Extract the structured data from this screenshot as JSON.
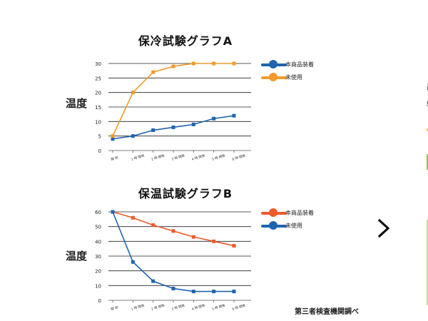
{
  "charts": [
    {
      "id": "A",
      "type": "line",
      "title": "保冷試験グラフA",
      "ylabel": "温度",
      "ylim": [
        0,
        30
      ],
      "yticks": [
        "0",
        "5",
        "10",
        "15",
        "20",
        "25",
        "30"
      ],
      "categories": [
        "開 始",
        "1 時 間後",
        "2 時 間後",
        "3 時 間後",
        "4 時 間後",
        "5 時 間後",
        "6 時 間後"
      ],
      "series": [
        {
          "name": "本商品装着",
          "color": "#1f64b0",
          "values": [
            4,
            5,
            7,
            8,
            9,
            11,
            12
          ]
        },
        {
          "name": "未使用",
          "color": "#f09a2c",
          "values": [
            5,
            20,
            27,
            29,
            30,
            30,
            30
          ]
        }
      ],
      "grid": true,
      "legend": "right"
    },
    {
      "id": "B",
      "type": "line",
      "title": "保温試験グラフB",
      "ylabel": "温度",
      "ylim": [
        0,
        60
      ],
      "yticks": [
        "0",
        "10",
        "20",
        "30",
        "40",
        "50",
        "60"
      ],
      "categories": [
        "開 始",
        "1 時 間後",
        "2 時 間後",
        "3 時 間後",
        "4 時 間後",
        "5 時 間後",
        "6 時 間後"
      ],
      "series": [
        {
          "name": "本商品装着",
          "color": "#ee5a2a",
          "values": [
            60,
            56,
            51,
            47,
            43,
            40,
            37
          ]
        },
        {
          "name": "未使用",
          "color": "#1f64b0",
          "values": [
            60,
            26,
            13,
            8,
            6,
            6,
            6
          ]
        }
      ],
      "grid": true,
      "legend": "right"
    }
  ],
  "source_note": "第三者検査機関調べ",
  "carousel": {
    "next_icon": "chevron-right-icon"
  },
  "right_strip": {
    "texts": [
      "・",
      "画",
      "組"
    ]
  }
}
